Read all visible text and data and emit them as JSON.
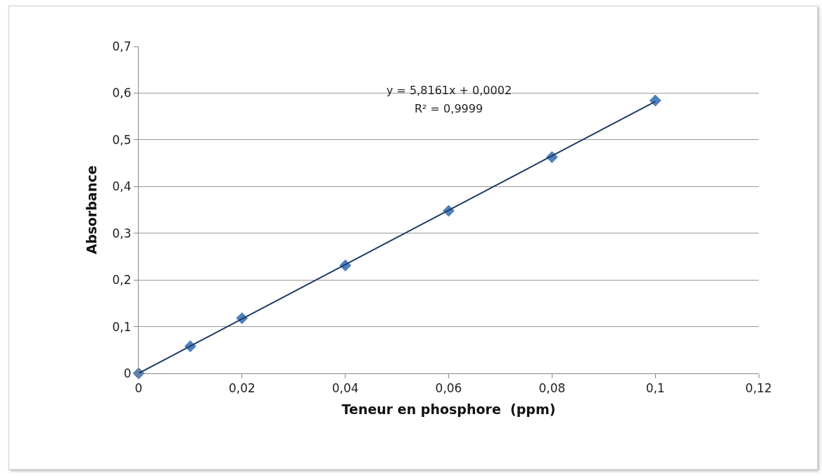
{
  "chart_data": {
    "type": "scatter",
    "xlabel": "Teneur en phosphore  (ppm)",
    "ylabel": "Absorbance",
    "annotations": [
      "y = 5,8161x + 0,0002",
      "R² = 0,9999"
    ],
    "x": [
      0,
      0.01,
      0.02,
      0.04,
      0.06,
      0.08,
      0.1
    ],
    "series": [
      {
        "color": "#4f81bd",
        "marker": "diamond",
        "values": [
          0,
          0.058,
          0.118,
          0.231,
          0.348,
          0.463,
          0.584
        ]
      },
      {
        "type": "line",
        "color": "#1f3b63",
        "marker": "none",
        "x": [
          0,
          0.1
        ],
        "values": [
          0,
          0.582
        ]
      }
    ],
    "xlim": [
      0,
      0.12
    ],
    "xticks": [
      0,
      {
        "value": 0.02,
        "label": "0,02"
      },
      {
        "value": 0.04,
        "label": "0,04"
      },
      {
        "value": 0.06,
        "label": "0,06"
      },
      {
        "value": 0.08,
        "label": "0,08"
      },
      {
        "value": 0.1,
        "label": "0,1"
      },
      {
        "value": 0.12,
        "label": "0,12"
      }
    ],
    "ylim": [
      0,
      0.7
    ],
    "yticks": [
      0,
      {
        "value": 0.1,
        "label": "0,1"
      },
      {
        "value": 0.2,
        "label": "0,2"
      },
      {
        "value": 0.3,
        "label": "0,3"
      },
      {
        "value": 0.4,
        "label": "0,4"
      },
      {
        "value": 0.5,
        "label": "0,5"
      },
      {
        "value": 0.6,
        "label": "0,6"
      },
      {
        "value": 0.7,
        "label": "0,7"
      }
    ],
    "grid": "y"
  }
}
